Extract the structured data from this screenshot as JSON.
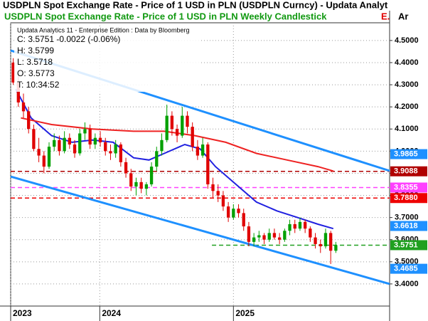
{
  "header": {
    "title": "USDPLN Spot Exchange Rate - Price of 1 USD in PLN (USDPLN Curncy) - Updata Analyt",
    "subtitle": "USDPLN Spot Exchange Rate - Price of 1 USD in PLN Weekly Candlestick",
    "subtitle_mark": "E.",
    "axis_head": "Ar"
  },
  "info": {
    "source": "Updata Analytics 11 - Enterprise Edition : Data by Bloomberg",
    "close": "C: 3.5751  -0.0022 (-0.06%)",
    "high": "H: 3.5799",
    "low": "L: 3.5718",
    "open": "O: 3.5773",
    "time": "T: 10:34:52"
  },
  "chart_data": {
    "type": "candlestick",
    "up_color": "#00a000",
    "down_color": "#e00000",
    "open": [
      4.4,
      4.31,
      4.22,
      4.18,
      4.1,
      4.01,
      3.98,
      3.93,
      4.02,
      4.05,
      4.0,
      4.06,
      4.03,
      3.99,
      4.08,
      4.1,
      4.03,
      4.06,
      4.04,
      4.0,
      3.99,
      4.03,
      3.95,
      3.9,
      3.84,
      3.86,
      3.83,
      3.85,
      3.93,
      4.0,
      4.05,
      4.16,
      4.1,
      4.07,
      4.16,
      4.11,
      4.02,
      3.98,
      4.03,
      3.85,
      3.82,
      3.8,
      3.75,
      3.7,
      3.74,
      3.72,
      3.66,
      3.59,
      3.61,
      3.62,
      3.6,
      3.63,
      3.61,
      3.6,
      3.64,
      3.67,
      3.65,
      3.68,
      3.65,
      3.61,
      3.58,
      3.57,
      3.63,
      3.55
    ],
    "high": [
      4.42,
      4.34,
      4.26,
      4.2,
      4.12,
      4.06,
      4.0,
      4.04,
      4.08,
      4.07,
      4.09,
      4.08,
      4.05,
      4.1,
      4.13,
      4.12,
      4.08,
      4.09,
      4.06,
      4.03,
      4.05,
      4.04,
      3.97,
      3.92,
      3.88,
      3.88,
      3.86,
      3.95,
      4.02,
      4.08,
      4.21,
      4.18,
      4.12,
      4.2,
      4.18,
      4.13,
      4.05,
      4.06,
      4.04,
      3.88,
      3.85,
      3.82,
      3.77,
      3.76,
      3.76,
      3.74,
      3.68,
      3.63,
      3.64,
      3.63,
      3.65,
      3.65,
      3.63,
      3.65,
      3.69,
      3.69,
      3.7,
      3.69,
      3.66,
      3.63,
      3.6,
      3.65,
      3.64,
      3.59
    ],
    "low": [
      4.3,
      4.2,
      4.15,
      4.08,
      4.0,
      3.95,
      3.9,
      3.92,
      4.0,
      3.98,
      3.99,
      4.01,
      3.97,
      3.98,
      4.05,
      4.01,
      4.01,
      4.02,
      3.98,
      3.96,
      3.97,
      3.93,
      3.88,
      3.82,
      3.8,
      3.81,
      3.8,
      3.84,
      3.91,
      3.98,
      4.04,
      4.07,
      4.04,
      4.06,
      4.08,
      4.0,
      3.96,
      3.97,
      3.83,
      3.79,
      3.77,
      3.73,
      3.68,
      3.69,
      3.7,
      3.64,
      3.57,
      3.57,
      3.59,
      3.58,
      3.59,
      3.6,
      3.58,
      3.59,
      3.62,
      3.63,
      3.64,
      3.63,
      3.59,
      3.56,
      3.54,
      3.56,
      3.49,
      3.54
    ],
    "close": [
      4.31,
      4.22,
      4.18,
      4.1,
      4.01,
      3.98,
      3.93,
      4.02,
      4.05,
      4.0,
      4.06,
      4.03,
      3.99,
      4.08,
      4.1,
      4.03,
      4.06,
      4.04,
      4.0,
      3.99,
      4.03,
      3.95,
      3.9,
      3.84,
      3.86,
      3.83,
      3.85,
      3.93,
      4.0,
      4.05,
      4.16,
      4.1,
      4.07,
      4.16,
      4.11,
      4.02,
      3.98,
      4.03,
      3.85,
      3.82,
      3.8,
      3.75,
      3.7,
      3.74,
      3.72,
      3.66,
      3.59,
      3.61,
      3.62,
      3.6,
      3.63,
      3.61,
      3.6,
      3.64,
      3.67,
      3.65,
      3.68,
      3.65,
      3.61,
      3.58,
      3.57,
      3.63,
      3.55,
      3.575
    ],
    "lines": [
      {
        "color": "#2020e0",
        "x": [
          1,
          4,
          8,
          12,
          16,
          20,
          24,
          27,
          30,
          34,
          37,
          40,
          44,
          48,
          52,
          56,
          60,
          63
        ],
        "values": [
          4.28,
          4.15,
          4.07,
          4.04,
          4.05,
          4.04,
          3.97,
          3.96,
          3.99,
          4.03,
          4.01,
          3.93,
          3.85,
          3.77,
          3.73,
          3.7,
          3.67,
          3.65
        ]
      },
      {
        "color": "#ee2222",
        "x": [
          2,
          8,
          16,
          24,
          30,
          36,
          42,
          48,
          54,
          60,
          63
        ],
        "values": [
          4.15,
          4.12,
          4.1,
          4.09,
          4.09,
          4.07,
          4.04,
          3.99,
          3.96,
          3.93,
          3.91
        ]
      },
      {
        "color": "#1e90ff",
        "x": [
          0,
          74
        ],
        "values": [
          4.455,
          3.911
        ]
      },
      {
        "color": "#1e90ff",
        "x": [
          0,
          74
        ],
        "values": [
          3.885,
          3.4
        ]
      }
    ],
    "levels": [
      {
        "value": 3.9088,
        "color": "#b00000"
      },
      {
        "value": 3.8355,
        "color": "#ff40ff"
      },
      {
        "value": 3.788,
        "color": "#ee0000"
      },
      {
        "value": 3.5751,
        "color": "#20a020",
        "x_start": 39.3
      }
    ],
    "axis_tags": [
      {
        "value": 3.9865,
        "label": "3.9865",
        "color": "#1e90ff"
      },
      {
        "value": 3.9088,
        "label": "3.9088",
        "color": "#b00000"
      },
      {
        "value": 3.8355,
        "label": "3.8355",
        "color": "#ff40ff"
      },
      {
        "value": 3.788,
        "label": "3.7880",
        "color": "#ee0000"
      },
      {
        "value": 3.6618,
        "label": "3.6618",
        "color": "#1e90ff"
      },
      {
        "value": 3.5751,
        "label": "3.5751",
        "color": "#20a020"
      },
      {
        "value": 3.4685,
        "label": "3.4685",
        "color": "#1e90ff"
      }
    ],
    "xlim": [
      0,
      74
    ],
    "xticks": [
      {
        "value": 0,
        "label": "2023"
      },
      {
        "value": 17.4,
        "label": "2024"
      },
      {
        "value": 43.5,
        "label": "2025"
      }
    ],
    "ylim": [
      3.3,
      4.58
    ],
    "yticks": [
      {
        "value": 3.4,
        "label": "3.4000"
      },
      {
        "value": 3.5,
        "label": "3.5000"
      },
      {
        "value": 3.6,
        "label": "3.6000"
      },
      {
        "value": 3.7,
        "label": "3.7000"
      },
      {
        "value": 3.8,
        "label": "3.8000"
      },
      {
        "value": 3.9,
        "label": "3.9000"
      },
      {
        "value": 4.0,
        "label": "4.0000"
      },
      {
        "value": 4.1,
        "label": "4.1000"
      },
      {
        "value": 4.2,
        "label": "4.2000"
      },
      {
        "value": 4.3,
        "label": "4.3000"
      },
      {
        "value": 4.4,
        "label": "4.4000"
      },
      {
        "value": 4.5,
        "label": "4.5000"
      }
    ],
    "grid": true
  }
}
